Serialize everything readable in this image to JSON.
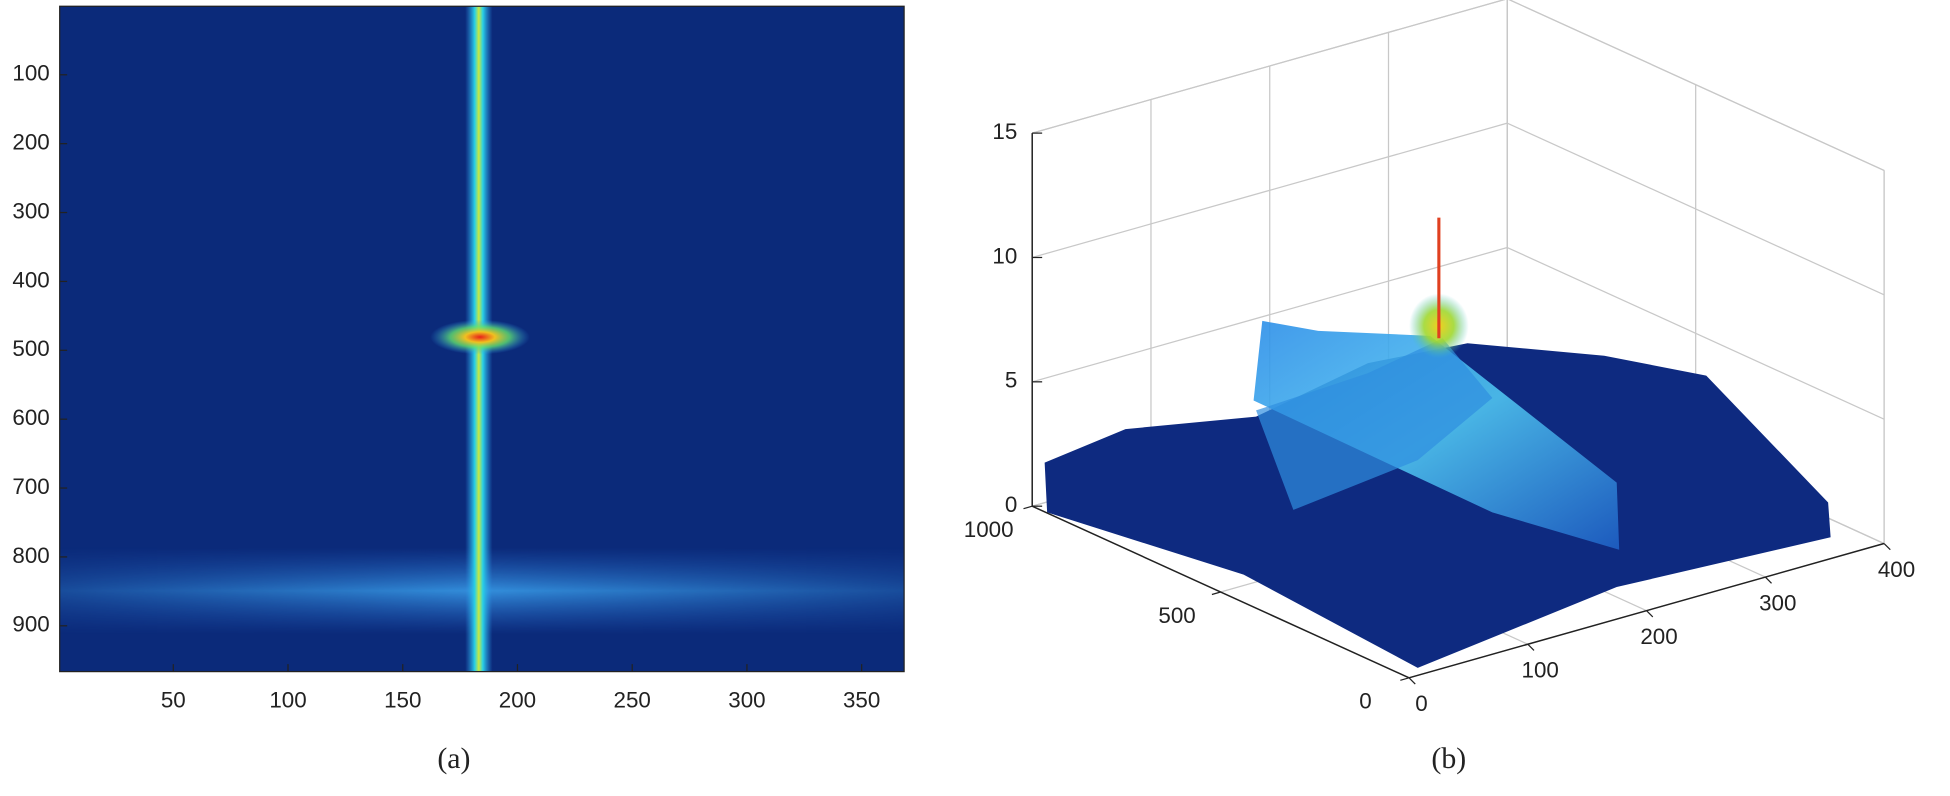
{
  "chart_data": [
    {
      "type": "heatmap",
      "xlim": [
        0.5,
        368.5
      ],
      "ylim": [
        0.5,
        966.5
      ],
      "yreversed": true,
      "xticks": [
        50,
        100,
        150,
        200,
        250,
        300,
        350
      ],
      "yticks": [
        100,
        200,
        300,
        400,
        500,
        600,
        700,
        800,
        900
      ],
      "color": "#0b2a7a",
      "caption": "(a)"
    },
    {
      "type": "surface",
      "xlim": [
        0,
        400
      ],
      "ylim": [
        0,
        1000
      ],
      "zlim": [
        0,
        15
      ],
      "xticks": [
        0,
        100,
        200,
        300,
        400
      ],
      "yticks": [
        0,
        500,
        1000
      ],
      "zticks": [
        0,
        5,
        10,
        15
      ],
      "grid": true,
      "color": "#0b2a7a",
      "caption": "(b)"
    }
  ]
}
